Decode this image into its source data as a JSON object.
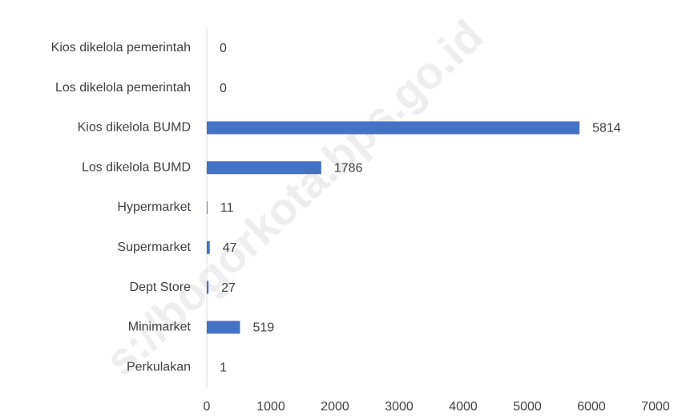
{
  "chart_data": {
    "type": "bar",
    "orientation": "horizontal",
    "categories": [
      "Kios dikelola pemerintah",
      "Los dikelola pemerintah",
      "Kios dikelola BUMD",
      "Los dikelola BUMD",
      "Hypermarket",
      "Supermarket",
      "Dept Store",
      "Minimarket",
      "Perkulakan"
    ],
    "values": [
      0,
      0,
      5814,
      1786,
      11,
      47,
      27,
      519,
      1
    ],
    "color": "#4472c4",
    "xlim": [
      0,
      7000
    ],
    "xticks": [
      0,
      1000,
      2000,
      3000,
      4000,
      5000,
      6000,
      7000
    ],
    "grid": false,
    "watermark": "s://bogorkota.bps.go.id"
  }
}
